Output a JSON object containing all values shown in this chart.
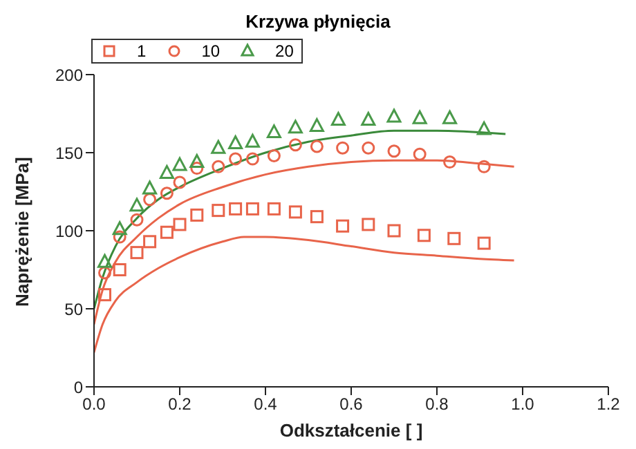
{
  "chart_data": {
    "type": "scatter",
    "title": "Krzywa płynięcia",
    "xlabel": "Odkształcenie [ ]",
    "ylabel": "Naprężenie [MPa]",
    "xlim": [
      0,
      1.2
    ],
    "xticks": [
      {
        "value": 0,
        "label": "0.0"
      },
      {
        "value": 0.2,
        "label": "0.2"
      },
      {
        "value": 0.4,
        "label": "0.4"
      },
      {
        "value": 0.6,
        "label": "0.6"
      },
      {
        "value": 0.8,
        "label": "0.8"
      },
      {
        "value": 1,
        "label": "1.0"
      },
      {
        "value": 1.2,
        "label": "1.2"
      }
    ],
    "ylim": [
      0,
      200
    ],
    "yticks": [
      0,
      50,
      100,
      150,
      200
    ],
    "grid": false,
    "legend": "top left",
    "series": [
      {
        "name": "1",
        "marker": "square",
        "color": "#e8644a",
        "x": [
          0.025,
          0.06,
          0.1,
          0.13,
          0.17,
          0.2,
          0.24,
          0.29,
          0.33,
          0.37,
          0.42,
          0.47,
          0.52,
          0.58,
          0.64,
          0.7,
          0.77,
          0.84,
          0.91
        ],
        "values": [
          59,
          75,
          86,
          93,
          99,
          104,
          110,
          113,
          114,
          114,
          114,
          112,
          109,
          103,
          104,
          100,
          97,
          95,
          92
        ]
      },
      {
        "name": "10",
        "marker": "circle",
        "color": "#e8644a",
        "x": [
          0.025,
          0.06,
          0.1,
          0.13,
          0.17,
          0.2,
          0.24,
          0.29,
          0.33,
          0.37,
          0.42,
          0.47,
          0.52,
          0.58,
          0.64,
          0.7,
          0.76,
          0.83,
          0.91
        ],
        "values": [
          73,
          96,
          107,
          120,
          124,
          131,
          140,
          141,
          146,
          146,
          148,
          155,
          154,
          153,
          153,
          151,
          149,
          144,
          141
        ]
      },
      {
        "name": "20",
        "marker": "triangle",
        "color": "#4a9a4a",
        "x": [
          0.025,
          0.06,
          0.1,
          0.13,
          0.17,
          0.2,
          0.24,
          0.29,
          0.33,
          0.37,
          0.42,
          0.47,
          0.52,
          0.57,
          0.64,
          0.7,
          0.76,
          0.83,
          0.91
        ],
        "values": [
          80,
          101,
          116,
          127,
          137,
          142,
          144,
          153,
          156,
          157,
          163,
          166,
          167,
          171,
          171,
          173,
          172,
          172,
          165
        ]
      },
      {
        "type": "line",
        "marker": "none",
        "color": "#e8644a",
        "x": [
          0,
          0.02,
          0.05,
          0.1,
          0.15,
          0.2,
          0.3,
          0.35,
          0.4,
          0.5,
          0.6,
          0.7,
          0.8,
          0.9,
          0.98
        ],
        "values": [
          22,
          40,
          55,
          67,
          76,
          83,
          93,
          96,
          96,
          94,
          90,
          86,
          84,
          82,
          81
        ]
      },
      {
        "type": "line",
        "marker": "none",
        "color": "#e8644a",
        "x": [
          0,
          0.02,
          0.05,
          0.1,
          0.15,
          0.2,
          0.3,
          0.4,
          0.5,
          0.6,
          0.7,
          0.8,
          0.9,
          0.98
        ],
        "values": [
          40,
          62,
          80,
          96,
          108,
          117,
          128,
          136,
          141,
          144,
          145,
          145,
          143,
          141
        ]
      },
      {
        "type": "line",
        "marker": "none",
        "color": "#3a8a3a",
        "x": [
          0,
          0.02,
          0.05,
          0.1,
          0.15,
          0.2,
          0.3,
          0.4,
          0.5,
          0.6,
          0.7,
          0.8,
          0.9,
          0.96
        ],
        "values": [
          50,
          70,
          90,
          108,
          120,
          128,
          140,
          150,
          157,
          161,
          164,
          164,
          163,
          162
        ]
      }
    ]
  }
}
